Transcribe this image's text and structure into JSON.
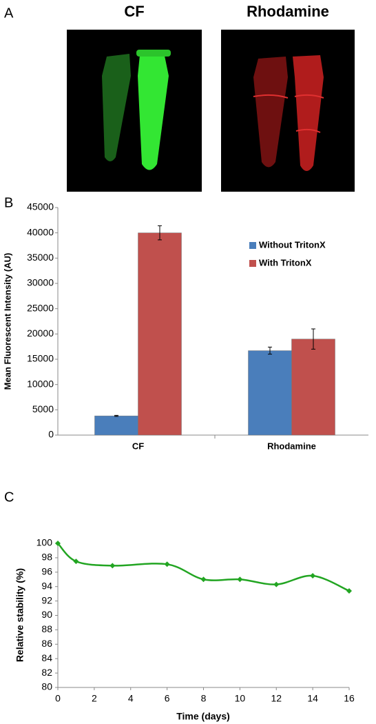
{
  "panel_a": {
    "label": "A",
    "titles": [
      "CF",
      "Rhodamine"
    ]
  },
  "chart_data": [
    {
      "type": "bar",
      "label": "B",
      "ylabel": "Mean Fluorescent Intensity (AU)",
      "categories": [
        "CF",
        "Rhodamine"
      ],
      "series": [
        {
          "name": "Without TritonX",
          "color": "#4a7ebb",
          "values": [
            3800,
            16700
          ],
          "errors": [
            100,
            700
          ]
        },
        {
          "name": "With TritonX",
          "color": "#c0504d",
          "values": [
            40000,
            19000
          ],
          "errors": [
            1400,
            2000
          ]
        }
      ],
      "ylim": [
        0,
        45000
      ],
      "yticks": [
        0,
        5000,
        10000,
        15000,
        20000,
        25000,
        30000,
        35000,
        40000,
        45000
      ],
      "legend": "top-right"
    },
    {
      "type": "line",
      "label": "C",
      "xlabel": "Time (days)",
      "ylabel": "Relative stability (%)",
      "x": [
        0,
        1,
        3,
        6,
        8,
        10,
        12,
        14,
        16
      ],
      "series": [
        {
          "color": "#22a522",
          "values": [
            100,
            97.5,
            96.9,
            97.1,
            95,
            95,
            94.3,
            95.5,
            93.4
          ]
        }
      ],
      "xlim": [
        0,
        16
      ],
      "xticks": [
        0,
        2,
        4,
        6,
        8,
        10,
        12,
        14,
        16
      ],
      "ylim": [
        80,
        100
      ],
      "yticks": [
        80,
        82,
        84,
        86,
        88,
        90,
        92,
        94,
        96,
        98,
        100
      ]
    }
  ]
}
